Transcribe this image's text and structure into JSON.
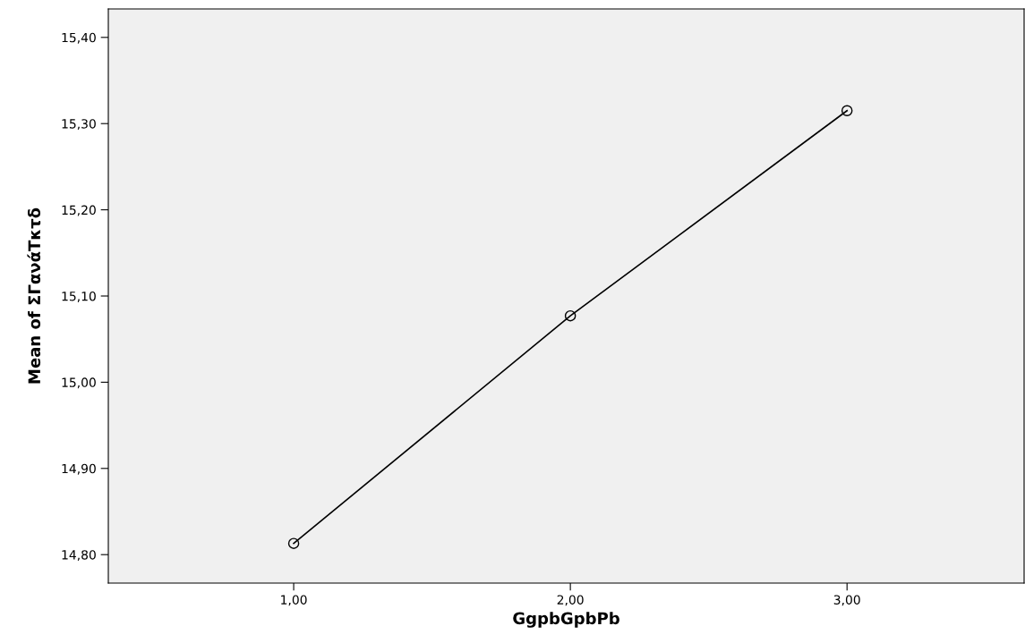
{
  "chart_data": {
    "type": "line",
    "xlabel": "GgpbGpbPb",
    "ylabel": "Mean of ΣΓανάΤκτδ",
    "x": [
      1,
      2,
      3
    ],
    "series": [
      {
        "color": "#000000",
        "values": [
          14.813,
          15.077,
          15.315
        ]
      }
    ],
    "marker": "circle",
    "line_style": "solid",
    "grid": false,
    "xlim": [
      0.33,
      3.64
    ],
    "ylim": [
      14.767,
      15.433
    ],
    "xticks": [
      {
        "value": 1,
        "label": "1,00"
      },
      {
        "value": 2,
        "label": "2,00"
      },
      {
        "value": 3,
        "label": "3,00"
      }
    ],
    "yticks": [
      {
        "value": 14.8,
        "label": "14,80"
      },
      {
        "value": 14.9,
        "label": "14,90"
      },
      {
        "value": 15.0,
        "label": "15,00"
      },
      {
        "value": 15.1,
        "label": "15,10"
      },
      {
        "value": 15.2,
        "label": "15,20"
      },
      {
        "value": 15.3,
        "label": "15,30"
      },
      {
        "value": 15.4,
        "label": "15,40"
      }
    ]
  }
}
